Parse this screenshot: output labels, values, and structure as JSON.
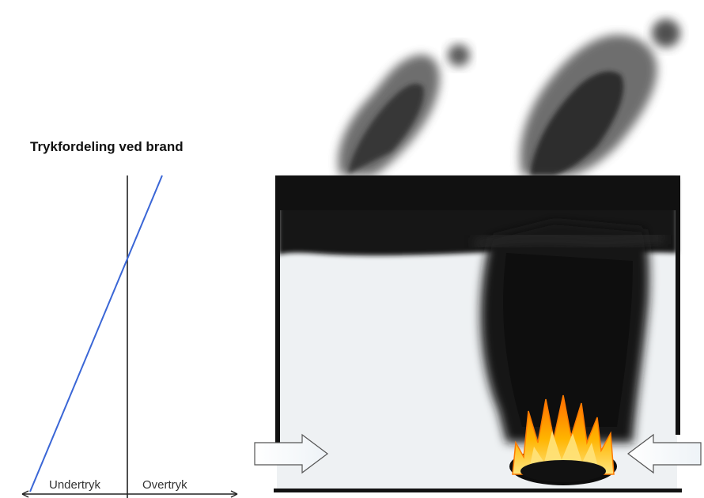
{
  "diagram": {
    "title": "Trykfordeling ved brand",
    "axis": {
      "left_label": "Undertryk",
      "right_label": "Overtryk"
    }
  },
  "colors": {
    "pressure_line": "#3a66d6",
    "axis": "#222222",
    "smoke": "#141414",
    "room_floor": "#eef1f3",
    "flame_outer": "#ff8a00",
    "flame_inner": "#ffd23a"
  },
  "icons": {
    "left_arrow": "arrow-right-icon",
    "right_arrow": "arrow-left-icon"
  }
}
